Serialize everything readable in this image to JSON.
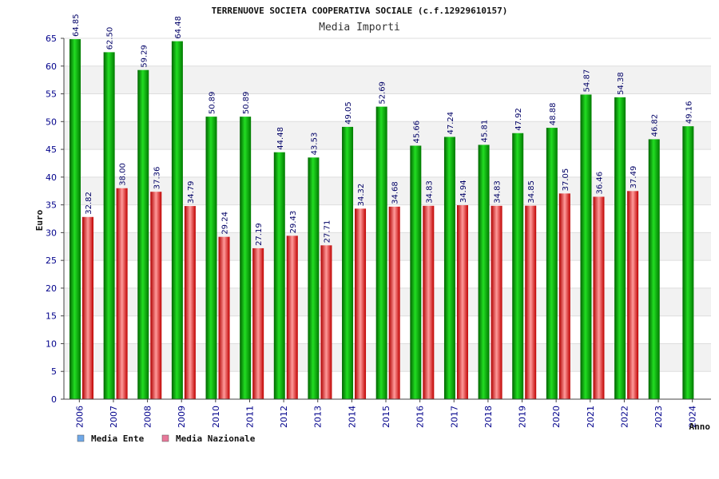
{
  "chart_data": {
    "type": "bar",
    "title": "TERRENUOVE SOCIETA COOPERATIVA SOCIALE (c.f.12929610157)",
    "subtitle": "Media Importi",
    "ylabel": "Euro",
    "xlabel": "Anno",
    "ylim": [
      0,
      65
    ],
    "yticks": [
      0,
      5,
      10,
      15,
      20,
      25,
      30,
      35,
      40,
      45,
      50,
      55,
      60,
      65
    ],
    "grid": true,
    "legend_position": "bottom-left",
    "categories": [
      "2006",
      "2007",
      "2008",
      "2009",
      "2010",
      "2011",
      "2012",
      "2013",
      "2014",
      "2015",
      "2016",
      "2017",
      "2018",
      "2019",
      "2020",
      "2021",
      "2022",
      "2023",
      "2024"
    ],
    "series": [
      {
        "name": "Media Ente",
        "color": "#00b000",
        "legend_color": "#6fa8e8",
        "values": [
          64.85,
          62.5,
          59.29,
          64.48,
          50.89,
          50.89,
          44.48,
          43.53,
          49.05,
          52.69,
          45.66,
          47.24,
          45.81,
          47.92,
          48.88,
          54.87,
          54.38,
          46.82,
          49.16
        ],
        "labels": [
          "64.85",
          "62.50",
          "59.29",
          "64.48",
          "50.89",
          "50.89",
          "44.48",
          "43.53",
          "49.05",
          "52.69",
          "45.66",
          "47.24",
          "45.81",
          "47.92",
          "48.88",
          "54.87",
          "54.38",
          "46.82",
          "49.16"
        ]
      },
      {
        "name": "Media Nazionale",
        "color": "#e02020",
        "legend_color": "#e8789a",
        "values": [
          32.82,
          38.0,
          37.36,
          34.79,
          29.24,
          27.19,
          29.43,
          27.71,
          34.32,
          34.68,
          34.83,
          34.94,
          34.83,
          34.85,
          37.05,
          36.46,
          37.49,
          null,
          null
        ],
        "labels": [
          "32.82",
          "38.00",
          "37.36",
          "34.79",
          "29.24",
          "27.19",
          "29.43",
          "27.71",
          "34.32",
          "34.68",
          "34.83",
          "34.94",
          "34.83",
          "34.85",
          "37.05",
          "36.46",
          "37.49",
          "",
          ""
        ]
      }
    ]
  }
}
